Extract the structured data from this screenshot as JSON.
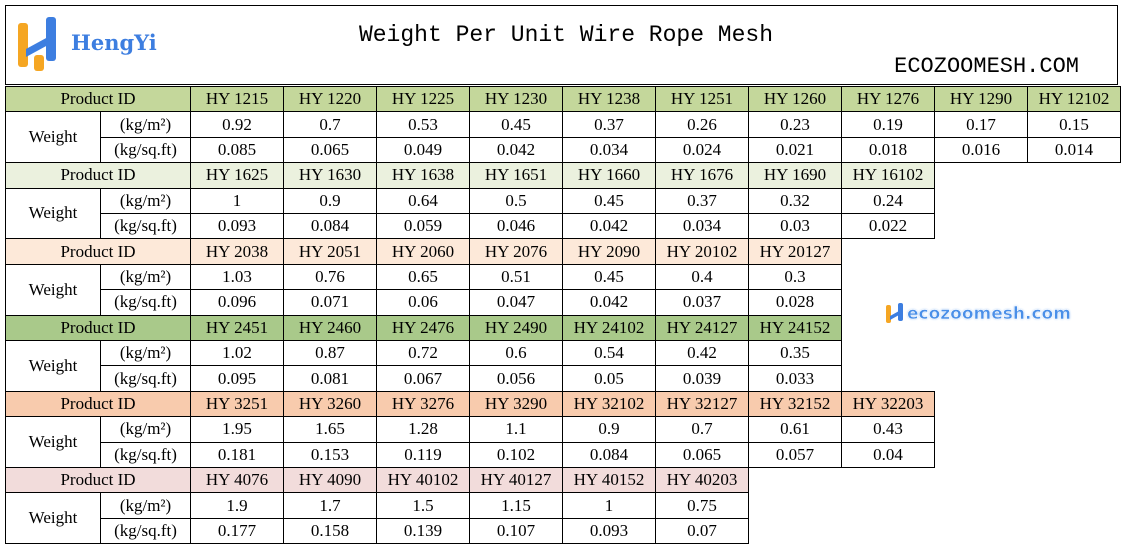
{
  "header": {
    "brand": "HengYi",
    "title": "Weight Per Unit Wire Rope Mesh",
    "site": "ECOZOOMESH.COM"
  },
  "watermark": "ecozoomesh.com",
  "groups": [
    {
      "color": "#c4d79b",
      "id_label": "Product ID",
      "weight_label": "Weight",
      "units": [
        "(kg/m²)",
        "(kg/sq.ft)"
      ],
      "ids": [
        "HY 1215",
        "HY 1220",
        "HY 1225",
        "HY 1230",
        "HY 1238",
        "HY 1251",
        "HY 1260",
        "HY 1276",
        "HY 1290",
        "HY 12102"
      ],
      "per_m2": [
        0.92,
        0.7,
        0.53,
        0.45,
        0.37,
        0.26,
        0.23,
        0.19,
        0.17,
        0.15
      ],
      "per_sqft": [
        0.085,
        0.065,
        0.049,
        0.042,
        0.034,
        0.024,
        0.021,
        0.018,
        0.016,
        0.014
      ]
    },
    {
      "color": "#ebf1de",
      "id_label": "Product ID",
      "weight_label": "Weight",
      "units": [
        "(kg/m²)",
        "(kg/sq.ft)"
      ],
      "ids": [
        "HY 1625",
        "HY 1630",
        "HY 1638",
        "HY 1651",
        "HY 1660",
        "HY 1676",
        "HY 1690",
        "HY 16102"
      ],
      "per_m2": [
        1,
        0.9,
        0.64,
        0.5,
        0.45,
        0.37,
        0.32,
        0.24
      ],
      "per_sqft": [
        0.093,
        0.084,
        0.059,
        0.046,
        0.042,
        0.034,
        0.03,
        0.022
      ]
    },
    {
      "color": "#fde9d9",
      "id_label": "Product ID",
      "weight_label": "Weight",
      "units": [
        "(kg/m²)",
        "(kg/sq.ft)"
      ],
      "ids": [
        "HY 2038",
        "HY 2051",
        "HY 2060",
        "HY 2076",
        "HY 2090",
        "HY 20102",
        "HY 20127"
      ],
      "per_m2": [
        1.03,
        0.76,
        0.65,
        0.51,
        0.45,
        0.4,
        0.3
      ],
      "per_sqft": [
        0.096,
        0.071,
        0.06,
        0.047,
        0.042,
        0.037,
        0.028
      ]
    },
    {
      "color": "#a9c98a",
      "id_label": "Product ID",
      "weight_label": "Weight",
      "units": [
        "(kg/m²)",
        "(kg/sq.ft)"
      ],
      "ids": [
        "HY 2451",
        "HY 2460",
        "HY 2476",
        "HY 2490",
        "HY 24102",
        "HY 24127",
        "HY 24152"
      ],
      "per_m2": [
        1.02,
        0.87,
        0.72,
        0.6,
        0.54,
        0.42,
        0.35
      ],
      "per_sqft": [
        0.095,
        0.081,
        0.067,
        0.056,
        0.05,
        0.039,
        0.033
      ]
    },
    {
      "color": "#f8cbad",
      "id_label": "Product ID",
      "weight_label": "Weight",
      "units": [
        "(kg/m²)",
        "(kg/sq.ft)"
      ],
      "ids": [
        "HY 3251",
        "HY 3260",
        "HY 3276",
        "HY 3290",
        "HY 32102",
        "HY 32127",
        "HY 32152",
        "HY 32203"
      ],
      "per_m2": [
        1.95,
        1.65,
        1.28,
        1.1,
        0.9,
        0.7,
        0.61,
        0.43
      ],
      "per_sqft": [
        0.181,
        0.153,
        0.119,
        0.102,
        0.084,
        0.065,
        0.057,
        0.04
      ]
    },
    {
      "color": "#f2dcdb",
      "id_label": "Product ID",
      "weight_label": "Weight",
      "units": [
        "(kg/m²)",
        "(kg/sq.ft)"
      ],
      "ids": [
        "HY 4076",
        "HY 4090",
        "HY 40102",
        "HY 40127",
        "HY 40152",
        "HY 40203"
      ],
      "per_m2": [
        1.9,
        1.7,
        1.5,
        1.15,
        1,
        0.75
      ],
      "per_sqft": [
        0.177,
        0.158,
        0.139,
        0.107,
        0.093,
        0.07
      ]
    }
  ]
}
